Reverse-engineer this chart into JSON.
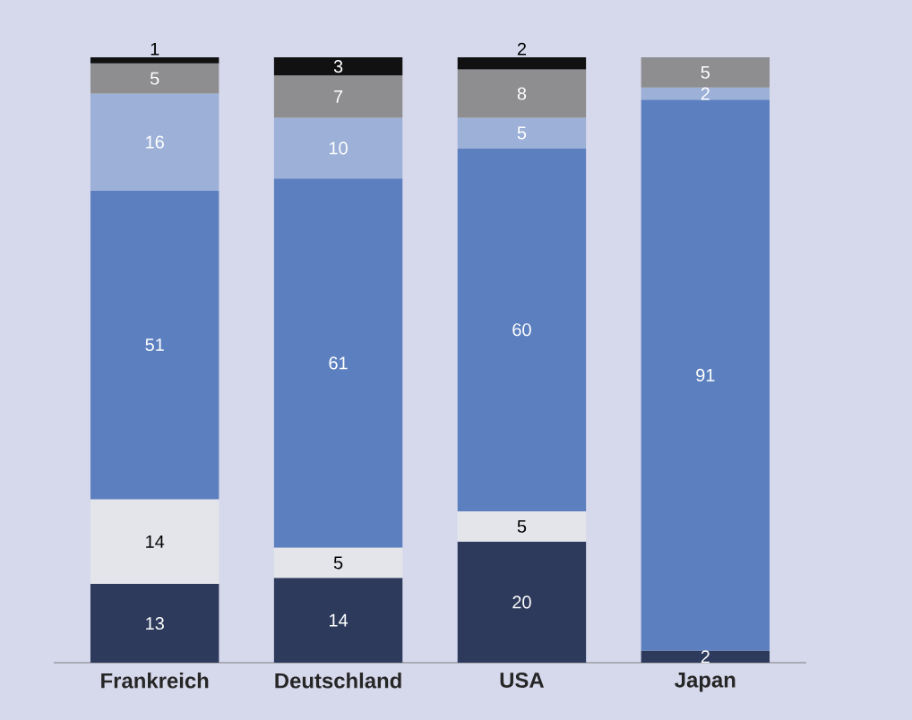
{
  "chart_data": {
    "type": "bar",
    "stacked": true,
    "data_labels": true,
    "categories": [
      "Frankreich",
      "Deutschland",
      "USA",
      "Japan"
    ],
    "series": [
      {
        "color": "#2d3a5c",
        "values": [
          13,
          14,
          20,
          2
        ]
      },
      {
        "color": "#e4e5ea",
        "values": [
          14,
          5,
          5,
          null
        ]
      },
      {
        "color": "#5c80bf",
        "values": [
          51,
          61,
          60,
          91
        ]
      },
      {
        "color": "#9cb0d8",
        "values": [
          16,
          10,
          5,
          2
        ]
      },
      {
        "color": "#8e8e90",
        "values": [
          5,
          7,
          8,
          5
        ]
      },
      {
        "color": "#111111",
        "values": [
          1,
          3,
          2,
          null
        ]
      }
    ]
  }
}
